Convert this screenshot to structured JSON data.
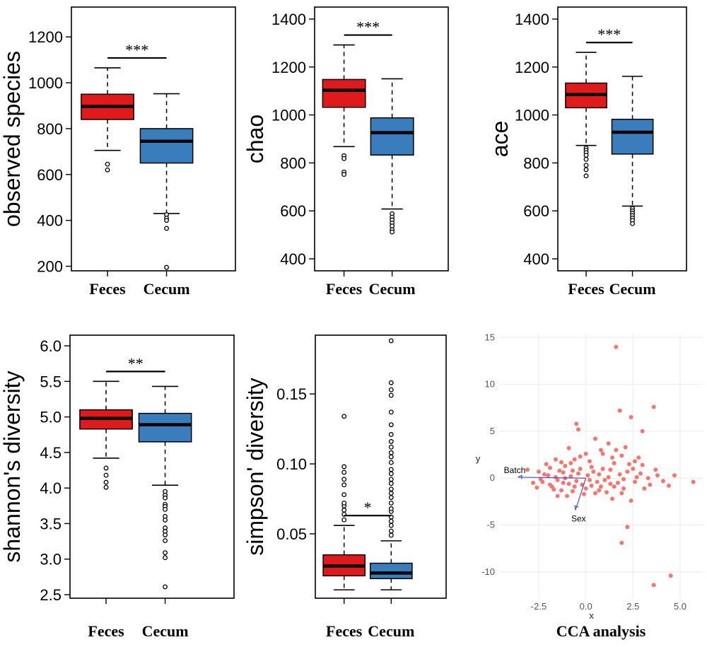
{
  "chart_data": [
    {
      "type": "box",
      "ylabel": "observed species",
      "categories": [
        "Feces",
        "Cecum"
      ],
      "ylim": [
        180,
        1330
      ],
      "yticks": [
        200,
        400,
        600,
        800,
        1000,
        1200
      ],
      "ytick_labels": [
        "200",
        "400",
        "600",
        "800",
        "1000",
        "1200"
      ],
      "significance": "***",
      "colors": [
        "#e0191b",
        "#3a7dbd"
      ],
      "boxes": [
        {
          "name": "Feces",
          "low": 705,
          "q1": 840,
          "median": 897,
          "q3": 950,
          "high": 1065,
          "outliers": [
            620,
            645
          ]
        },
        {
          "name": "Cecum",
          "low": 430,
          "q1": 650,
          "median": 745,
          "q3": 800,
          "high": 952,
          "outliers": [
            425,
            410,
            400,
            365,
            195
          ]
        }
      ]
    },
    {
      "type": "box",
      "ylabel": "chao",
      "categories": [
        "Feces",
        "Cecum"
      ],
      "ylim": [
        350,
        1450
      ],
      "yticks": [
        400,
        600,
        800,
        1000,
        1200,
        1400
      ],
      "ytick_labels": [
        "400",
        "600",
        "800",
        "1000",
        "1200",
        "1400"
      ],
      "significance": "***",
      "colors": [
        "#e0191b",
        "#3a7dbd"
      ],
      "boxes": [
        {
          "name": "Feces",
          "low": 868,
          "q1": 1032,
          "median": 1103,
          "q3": 1148,
          "high": 1292,
          "outliers": [
            830,
            818,
            762,
            752
          ]
        },
        {
          "name": "Cecum",
          "low": 608,
          "q1": 833,
          "median": 926,
          "q3": 988,
          "high": 1151,
          "outliers": [
            588,
            574,
            562,
            549,
            537,
            522,
            512
          ]
        }
      ]
    },
    {
      "type": "box",
      "ylabel": "ace",
      "categories": [
        "Feces",
        "Cecum"
      ],
      "ylim": [
        350,
        1450
      ],
      "yticks": [
        400,
        600,
        800,
        1000,
        1200,
        1400
      ],
      "ytick_labels": [
        "400",
        "600",
        "800",
        "1000",
        "1200",
        "1400"
      ],
      "significance": "***",
      "colors": [
        "#e0191b",
        "#3a7dbd"
      ],
      "boxes": [
        {
          "name": "Feces",
          "low": 873,
          "q1": 1030,
          "median": 1085,
          "q3": 1133,
          "high": 1261,
          "outliers": [
            862,
            853,
            843,
            832,
            815,
            790,
            772,
            746
          ]
        },
        {
          "name": "Cecum",
          "low": 620,
          "q1": 837,
          "median": 928,
          "q3": 982,
          "high": 1161,
          "outliers": [
            610,
            600,
            590,
            580,
            570,
            560,
            547
          ]
        }
      ]
    },
    {
      "type": "box",
      "ylabel": "shannon's diversity",
      "categories": [
        "Feces",
        "Cecum"
      ],
      "ylim": [
        2.45,
        6.15
      ],
      "yticks": [
        2.5,
        3.0,
        3.5,
        4.0,
        4.5,
        5.0,
        5.5,
        6.0
      ],
      "ytick_labels": [
        "2.5",
        "3.0",
        "3.5",
        "4.0",
        "4.5",
        "5.0",
        "5.5",
        "6.0"
      ],
      "significance": "**",
      "colors": [
        "#e0191b",
        "#3a7dbd"
      ],
      "boxes": [
        {
          "name": "Feces",
          "low": 4.42,
          "q1": 4.83,
          "median": 4.98,
          "q3": 5.1,
          "high": 5.5,
          "outliers": [
            4.28,
            4.18,
            4.08,
            4.01
          ]
        },
        {
          "name": "Cecum",
          "low": 4.04,
          "q1": 4.65,
          "median": 4.89,
          "q3": 5.05,
          "high": 5.43,
          "outliers": [
            3.95,
            3.9,
            3.86,
            3.77,
            3.74,
            3.7,
            3.6,
            3.55,
            3.44,
            3.39,
            3.34,
            3.26,
            3.09,
            3.02,
            2.61
          ]
        }
      ]
    },
    {
      "type": "box",
      "ylabel": "simpson' diversity",
      "categories": [
        "Feces",
        "Cecum"
      ],
      "ylim": [
        0.004,
        0.192
      ],
      "yticks": [
        0.05,
        0.1,
        0.15
      ],
      "ytick_labels": [
        "0.05",
        "0.10",
        "0.15"
      ],
      "significance": "*",
      "colors": [
        "#e0191b",
        "#3a7dbd"
      ],
      "boxes": [
        {
          "name": "Feces",
          "low": 0.01,
          "q1": 0.02,
          "median": 0.027,
          "q3": 0.035,
          "high": 0.056,
          "outliers": [
            0.06,
            0.064,
            0.067,
            0.07,
            0.072,
            0.078,
            0.085,
            0.089,
            0.094,
            0.098,
            0.134
          ]
        },
        {
          "name": "Cecum",
          "low": 0.01,
          "q1": 0.018,
          "median": 0.022,
          "q3": 0.029,
          "high": 0.045,
          "outliers": [
            0.049,
            0.052,
            0.056,
            0.059,
            0.062,
            0.066,
            0.068,
            0.072,
            0.076,
            0.079,
            0.082,
            0.086,
            0.089,
            0.093,
            0.096,
            0.101,
            0.105,
            0.108,
            0.112,
            0.116,
            0.121,
            0.128,
            0.137,
            0.149,
            0.153,
            0.158,
            0.188
          ]
        }
      ]
    },
    {
      "type": "scatter",
      "title": "CCA analysis",
      "xlabel": "x",
      "ylabel": "y",
      "xlim": [
        -4.6,
        6.2
      ],
      "ylim": [
        -12.8,
        15.4
      ],
      "xticks": [
        -2.5,
        0.0,
        2.5,
        5.0
      ],
      "xtick_labels": [
        "-2.5",
        "0.0",
        "2.5",
        "5.0"
      ],
      "yticks": [
        -10,
        -5,
        0,
        5,
        10,
        15
      ],
      "ytick_labels": [
        "-10",
        "-5",
        "0",
        "5",
        "10",
        "15"
      ],
      "point_color": "#f8766d",
      "vector_color": "#4b4bd6",
      "vectors": [
        {
          "label": "Batch",
          "x": -3.6,
          "y": 0.1
        },
        {
          "label": "Sex",
          "x": -0.55,
          "y": -3.4
        }
      ],
      "points": [
        [
          1.6,
          14.0
        ],
        [
          3.6,
          7.6
        ],
        [
          1.8,
          7.2
        ],
        [
          2.4,
          6.5
        ],
        [
          -0.5,
          5.8
        ],
        [
          -0.4,
          5.2
        ],
        [
          3.0,
          5.0
        ],
        [
          0.5,
          4.2
        ],
        [
          1.2,
          3.7
        ],
        [
          1.6,
          3.0
        ],
        [
          1.9,
          2.4
        ],
        [
          2.6,
          1.8
        ],
        [
          -0.9,
          3.2
        ],
        [
          -1.6,
          2.0
        ],
        [
          -2.1,
          1.5
        ],
        [
          -1.1,
          1.3
        ],
        [
          -0.7,
          0.8
        ],
        [
          0.3,
          1.2
        ],
        [
          0.7,
          0.4
        ],
        [
          1.0,
          -0.2
        ],
        [
          1.3,
          0.9
        ],
        [
          1.7,
          -0.5
        ],
        [
          2.2,
          0.7
        ],
        [
          2.6,
          -0.4
        ],
        [
          2.9,
          0.5
        ],
        [
          3.3,
          0.0
        ],
        [
          3.8,
          0.3
        ],
        [
          4.1,
          -0.3
        ],
        [
          4.4,
          -0.8
        ],
        [
          4.7,
          0.3
        ],
        [
          5.7,
          -0.4
        ],
        [
          -2.5,
          0.7
        ],
        [
          -2.3,
          -0.4
        ],
        [
          -2.0,
          0.3
        ],
        [
          -1.8,
          -0.9
        ],
        [
          -1.5,
          -0.2
        ],
        [
          -1.3,
          -1.3
        ],
        [
          -1.1,
          0.0
        ],
        [
          -0.9,
          -0.6
        ],
        [
          -0.7,
          -1.4
        ],
        [
          -0.4,
          0.5
        ],
        [
          -0.2,
          -0.7
        ],
        [
          0.0,
          -1.1
        ],
        [
          0.2,
          -0.2
        ],
        [
          0.5,
          -1.6
        ],
        [
          0.8,
          -0.9
        ],
        [
          1.1,
          -1.5
        ],
        [
          1.4,
          -2.2
        ],
        [
          1.9,
          -1.6
        ],
        [
          2.4,
          -2.4
        ],
        [
          2.2,
          -5.2
        ],
        [
          1.9,
          -6.9
        ],
        [
          3.6,
          -11.4
        ],
        [
          4.5,
          -10.4
        ],
        [
          -1.5,
          -1.9
        ],
        [
          -1.2,
          0.6
        ],
        [
          -0.8,
          1.6
        ],
        [
          -0.3,
          2.3
        ],
        [
          0.2,
          1.8
        ],
        [
          0.9,
          2.6
        ],
        [
          1.5,
          1.6
        ],
        [
          2.1,
          3.3
        ],
        [
          2.8,
          2.2
        ],
        [
          3.1,
          -1.1
        ],
        [
          -2.8,
          -0.5
        ],
        [
          -3.1,
          0.9
        ],
        [
          -1.9,
          1.1
        ],
        [
          -1.7,
          -1.2
        ],
        [
          -1.0,
          -1.9
        ],
        [
          -0.6,
          -0.9
        ],
        [
          -0.1,
          -1.7
        ],
        [
          0.4,
          0.7
        ],
        [
          0.6,
          -0.4
        ],
        [
          1.2,
          0.1
        ],
        [
          1.5,
          -0.9
        ],
        [
          2.0,
          -0.1
        ],
        [
          -2.6,
          -1.0
        ],
        [
          -2.2,
          0.4
        ],
        [
          -1.4,
          0.8
        ],
        [
          -0.5,
          -0.3
        ],
        [
          0.1,
          0.3
        ],
        [
          0.9,
          1.0
        ],
        [
          1.8,
          0.4
        ],
        [
          2.5,
          1.0
        ],
        [
          3.4,
          -0.7
        ],
        [
          -1.6,
          0.1
        ],
        [
          -1.2,
          -0.5
        ],
        [
          -0.8,
          0.2
        ],
        [
          -0.3,
          1.0
        ],
        [
          0.3,
          -0.8
        ],
        [
          0.7,
          -1.3
        ],
        [
          1.3,
          -0.6
        ],
        [
          2.0,
          -1.1
        ],
        [
          2.7,
          0.1
        ],
        [
          -2.4,
          -0.1
        ],
        [
          -1.9,
          -0.7
        ],
        [
          -1.3,
          1.7
        ],
        [
          -0.6,
          2.0
        ],
        [
          0.0,
          2.6
        ],
        [
          0.8,
          3.0
        ],
        [
          1.4,
          2.2
        ],
        [
          2.3,
          1.5
        ],
        [
          3.0,
          1.4
        ],
        [
          3.7,
          0.9
        ]
      ]
    }
  ]
}
